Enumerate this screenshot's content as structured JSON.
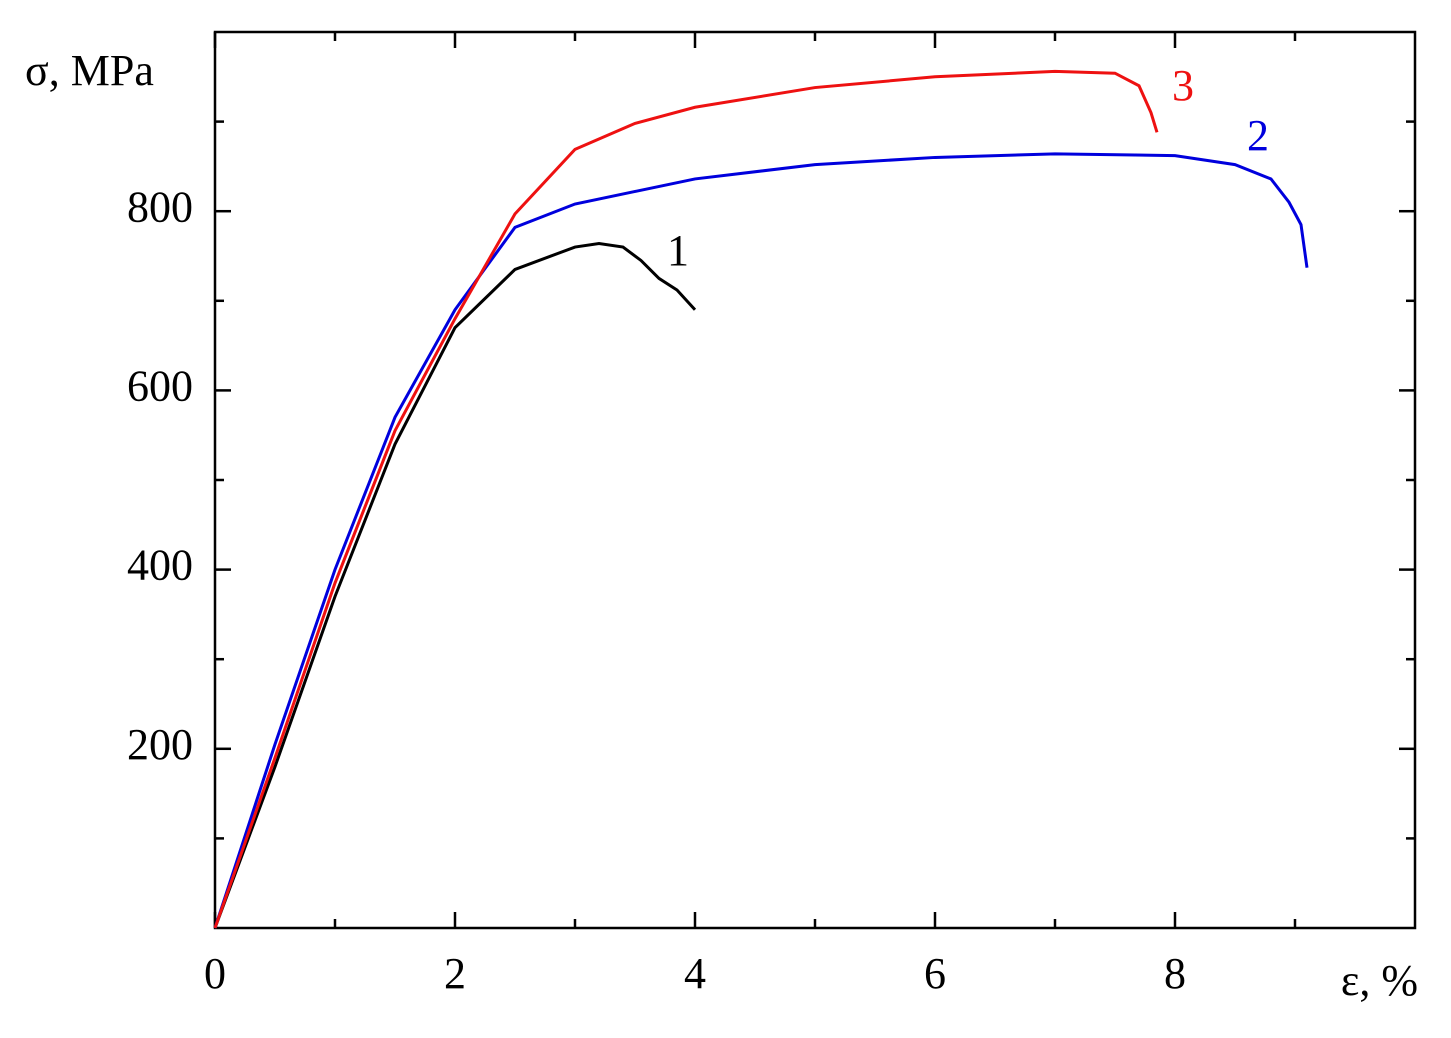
{
  "chart_data": {
    "type": "line",
    "y_label": "σ, MPa",
    "x_label": "ε, %",
    "xlim": [
      0,
      10
    ],
    "ylim": [
      0,
      1000
    ],
    "xticks": [
      0,
      2,
      4,
      6,
      8
    ],
    "yticks": [
      200,
      400,
      600,
      800
    ],
    "xminorticks": [
      1,
      3,
      5,
      7,
      9
    ],
    "yminorticks": [
      100,
      300,
      500,
      700,
      900
    ],
    "series": [
      {
        "name": "1",
        "color": "#000000",
        "x": [
          0,
          0.5,
          1,
          1.5,
          2,
          2.5,
          3,
          3.2,
          3.4,
          3.55,
          3.7,
          3.85,
          4
        ],
        "values": [
          0,
          180,
          370,
          540,
          670,
          735,
          760,
          764,
          760,
          745,
          725,
          712,
          690
        ]
      },
      {
        "name": "2",
        "color": "#0000dd",
        "x": [
          0,
          0.5,
          1,
          1.5,
          2,
          2.5,
          3,
          4,
          5,
          6,
          7,
          8,
          8.5,
          8.8,
          8.95,
          9.05,
          9.1
        ],
        "values": [
          0,
          205,
          400,
          570,
          690,
          782,
          808,
          836,
          852,
          860,
          864,
          862,
          852,
          836,
          810,
          785,
          737
        ]
      },
      {
        "name": "3",
        "color": "#ee1111",
        "x": [
          0,
          0.5,
          1,
          1.5,
          2,
          2.5,
          3,
          3.5,
          4,
          5,
          6,
          7,
          7.5,
          7.7,
          7.8,
          7.85
        ],
        "values": [
          0,
          190,
          385,
          555,
          680,
          797,
          869,
          898,
          916,
          938,
          950,
          956,
          954,
          940,
          910,
          888
        ]
      }
    ]
  }
}
